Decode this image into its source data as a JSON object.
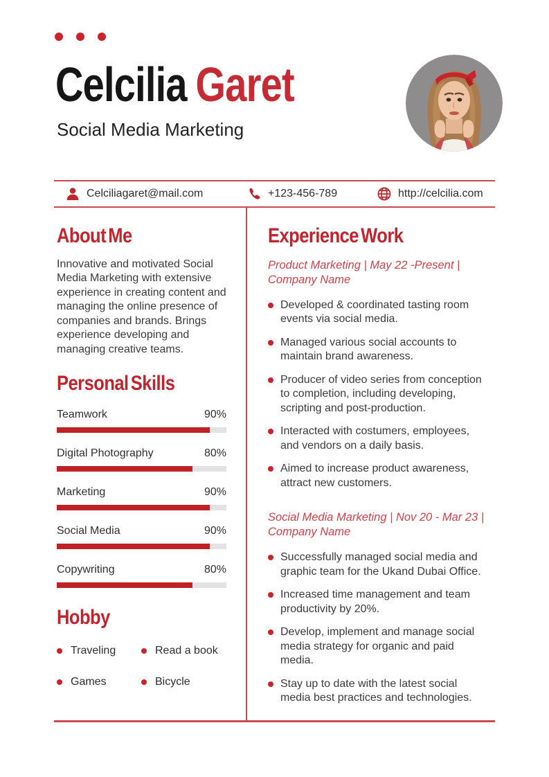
{
  "colors": {
    "accent": "#C2242E",
    "name_red": "#C42B35",
    "job_red": "#D4414B",
    "bar_red": "#BE2126",
    "line_red": "#C94A50",
    "dot_red": "#CC2229",
    "track_gray": "#E3E3E3",
    "text_dark": "#3B3B3B",
    "name_black": "#161616",
    "photo_bg": "#8E8C8D"
  },
  "header": {
    "first_name": "Celcilia",
    "last_name": "Garet",
    "subtitle": "Social Media Marketing"
  },
  "contact": {
    "email": "Celciliagaret@mail.com",
    "phone": "+123-456-789",
    "website": "http://celcilia.com",
    "icons": [
      "person-icon",
      "phone-icon",
      "globe-icon"
    ]
  },
  "about": {
    "title": "About Me",
    "body": "Innovative and motivated Social Media Marketing with extensive experience in creating content and managing the online presence of companies and brands. Brings experience developing and managing creative teams."
  },
  "skills": {
    "title": "Personal Skills",
    "items": [
      {
        "label": "Teamwork",
        "value": "90%",
        "percent": 90
      },
      {
        "label": "Digital Photography",
        "value": "80%",
        "percent": 80
      },
      {
        "label": "Marketing",
        "value": "90%",
        "percent": 90
      },
      {
        "label": "Social Media",
        "value": "90%",
        "percent": 90
      },
      {
        "label": "Copywriting",
        "value": "80%",
        "percent": 80
      }
    ]
  },
  "hobby": {
    "title": "Hobby",
    "items": [
      "Traveling",
      "Read a book",
      "Games",
      "Bicycle"
    ]
  },
  "experience": {
    "title": "Experience Work",
    "jobs": [
      {
        "heading": "Product Marketing | May 22 -Present | Company Name",
        "bullets": [
          "Developed & coordinated tasting room events via social media.",
          "Managed various social accounts to maintain brand awareness.",
          "Producer of video series from conception to completion, including developing, scripting and post-production.",
          "Interacted with costumers, employees, and vendors on a daily basis.",
          "Aimed to increase product awareness, attract new customers."
        ]
      },
      {
        "heading": "Social Media Marketing | Nov 20 - Mar 23 | Company Name",
        "bullets": [
          "Successfully managed social media and graphic team for the Ukand Dubai Office.",
          "Increased time management and team productivity by 20%.",
          "Develop, implement and manage social media strategy for organic and paid media.",
          "Stay up to date with the latest social media best practices and technologies."
        ]
      }
    ]
  }
}
